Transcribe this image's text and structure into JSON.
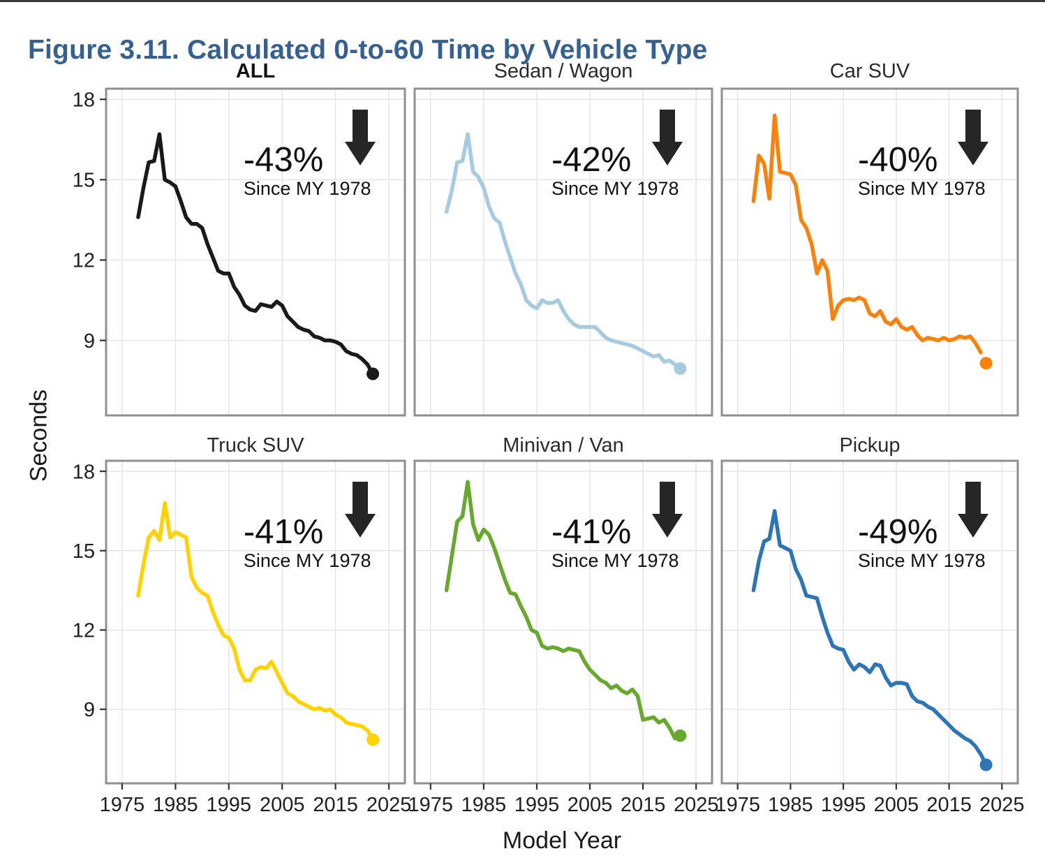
{
  "figure": {
    "title": "Figure 3.11. Calculated 0-to-60 Time by Vehicle Type",
    "title_color": "#36618F",
    "x_axis_label": "Model Year",
    "y_axis_label": "Seconds",
    "arrow_color": "#262626",
    "arrow_icon": "down-arrow"
  },
  "axes": {
    "x_ticks": [
      1975,
      1985,
      1995,
      2005,
      2015,
      2025
    ],
    "y_ticks": [
      18,
      15,
      12,
      9
    ],
    "x_domain": [
      1972,
      2028
    ],
    "y_domain": [
      6.2,
      18.4
    ],
    "grid": true,
    "grid_color": "#e7e7e7",
    "border_color": "#8f8f8f",
    "tick_color": "#333333"
  },
  "model_years": [
    1978,
    1979,
    1980,
    1981,
    1982,
    1983,
    1984,
    1985,
    1986,
    1987,
    1988,
    1989,
    1990,
    1991,
    1992,
    1993,
    1994,
    1995,
    1996,
    1997,
    1998,
    1999,
    2000,
    2001,
    2002,
    2003,
    2004,
    2005,
    2006,
    2007,
    2008,
    2009,
    2010,
    2011,
    2012,
    2013,
    2014,
    2015,
    2016,
    2017,
    2018,
    2019,
    2020,
    2021,
    2022
  ],
  "chart_data": [
    {
      "type": "line",
      "title": "ALL",
      "color": "#1a1a1a",
      "ylabel": "Seconds",
      "xlabel": "Model Year",
      "annotation": {
        "pct": "-43%",
        "since": "Since MY 1978"
      },
      "line_gap_before_last": false,
      "values": [
        13.6,
        14.7,
        15.65,
        15.7,
        16.7,
        15.0,
        14.9,
        14.75,
        14.2,
        13.6,
        13.35,
        13.35,
        13.2,
        12.6,
        12.1,
        11.6,
        11.5,
        11.5,
        11.0,
        10.7,
        10.3,
        10.15,
        10.1,
        10.35,
        10.3,
        10.25,
        10.45,
        10.3,
        9.9,
        9.7,
        9.5,
        9.4,
        9.35,
        9.15,
        9.1,
        9.0,
        9.0,
        8.95,
        8.85,
        8.6,
        8.5,
        8.45,
        8.3,
        8.1,
        7.75
      ]
    },
    {
      "type": "line",
      "title": "Sedan / Wagon",
      "color": "#a6cbe0",
      "ylabel": "Seconds",
      "xlabel": "Model Year",
      "annotation": {
        "pct": "-42%",
        "since": "Since MY 1978"
      },
      "line_gap_before_last": false,
      "values": [
        13.8,
        14.6,
        15.65,
        15.7,
        16.7,
        15.3,
        15.1,
        14.7,
        14.0,
        13.55,
        13.4,
        12.7,
        12.1,
        11.5,
        11.1,
        10.5,
        10.3,
        10.2,
        10.5,
        10.4,
        10.4,
        10.5,
        10.1,
        9.8,
        9.6,
        9.5,
        9.5,
        9.5,
        9.5,
        9.3,
        9.1,
        9.0,
        8.95,
        8.9,
        8.85,
        8.8,
        8.7,
        8.6,
        8.5,
        8.4,
        8.45,
        8.2,
        8.25,
        8.1,
        7.95
      ]
    },
    {
      "type": "line",
      "title": "Car SUV",
      "color": "#f8820b",
      "ylabel": "Seconds",
      "xlabel": "Model Year",
      "annotation": {
        "pct": "-40%",
        "since": "Since MY 1978"
      },
      "line_gap_before_last": true,
      "values": [
        14.2,
        15.9,
        15.6,
        14.3,
        17.4,
        15.3,
        15.25,
        15.2,
        14.8,
        13.5,
        13.2,
        12.6,
        11.5,
        12.0,
        11.6,
        9.8,
        10.3,
        10.5,
        10.55,
        10.5,
        10.6,
        10.5,
        10.0,
        9.9,
        10.1,
        9.7,
        9.6,
        9.8,
        9.5,
        9.4,
        9.5,
        9.2,
        9.0,
        9.1,
        9.05,
        9.0,
        9.1,
        9.0,
        9.05,
        9.15,
        9.1,
        9.15,
        8.9,
        8.55,
        8.15
      ]
    },
    {
      "type": "line",
      "title": "Truck SUV",
      "color": "#ffd200",
      "ylabel": "Seconds",
      "xlabel": "Model Year",
      "annotation": {
        "pct": "-41%",
        "since": "Since MY 1978"
      },
      "line_gap_before_last": false,
      "values": [
        13.3,
        14.5,
        15.5,
        15.75,
        15.4,
        16.8,
        15.5,
        15.7,
        15.6,
        15.5,
        14.0,
        13.6,
        13.4,
        13.3,
        12.7,
        12.2,
        11.8,
        11.7,
        11.3,
        10.5,
        10.1,
        10.1,
        10.5,
        10.6,
        10.55,
        10.8,
        10.4,
        10.0,
        9.6,
        9.5,
        9.3,
        9.2,
        9.1,
        9.0,
        9.05,
        8.95,
        9.0,
        8.8,
        8.7,
        8.5,
        8.45,
        8.4,
        8.35,
        8.2,
        7.85
      ]
    },
    {
      "type": "line",
      "title": "Minivan / Van",
      "color": "#69a82f",
      "ylabel": "Seconds",
      "xlabel": "Model Year",
      "annotation": {
        "pct": "-41%",
        "since": "Since MY 1978"
      },
      "line_gap_before_last": false,
      "values": [
        13.5,
        14.8,
        16.1,
        16.3,
        17.6,
        16.0,
        15.4,
        15.8,
        15.6,
        15.1,
        14.5,
        13.9,
        13.4,
        13.35,
        12.9,
        12.5,
        12.0,
        11.9,
        11.4,
        11.3,
        11.35,
        11.3,
        11.2,
        11.3,
        11.25,
        11.2,
        10.8,
        10.5,
        10.3,
        10.1,
        10.0,
        9.8,
        9.9,
        9.7,
        9.6,
        9.75,
        9.5,
        8.6,
        8.65,
        8.7,
        8.5,
        8.6,
        8.3,
        7.9,
        8.0
      ]
    },
    {
      "type": "line",
      "title": "Pickup",
      "color": "#2e75b6",
      "ylabel": "Seconds",
      "xlabel": "Model Year",
      "annotation": {
        "pct": "-49%",
        "since": "Since MY 1978"
      },
      "line_gap_before_last": false,
      "values": [
        13.5,
        14.6,
        15.35,
        15.45,
        16.5,
        15.2,
        15.1,
        15.0,
        14.3,
        13.9,
        13.3,
        13.25,
        13.2,
        12.5,
        11.9,
        11.4,
        11.3,
        11.25,
        10.8,
        10.5,
        10.7,
        10.6,
        10.4,
        10.7,
        10.65,
        10.2,
        9.9,
        10.0,
        10.0,
        9.95,
        9.5,
        9.3,
        9.25,
        9.1,
        9.0,
        8.8,
        8.6,
        8.4,
        8.2,
        8.05,
        7.9,
        7.8,
        7.6,
        7.3,
        6.9
      ]
    }
  ]
}
